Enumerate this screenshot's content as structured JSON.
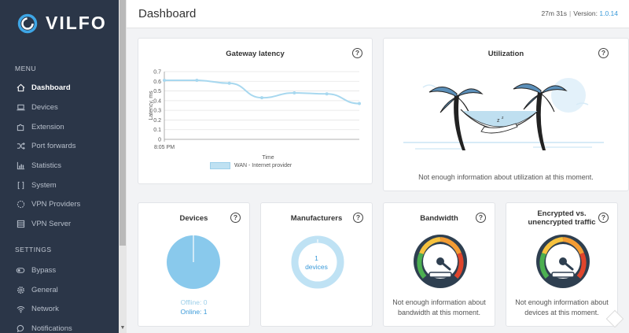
{
  "app": {
    "name": "VILFO"
  },
  "sidebar": {
    "menu_heading": "MENU",
    "settings_heading": "SETTINGS",
    "menu_items": [
      {
        "label": "Dashboard",
        "icon": "home-icon",
        "active": true
      },
      {
        "label": "Devices",
        "icon": "laptop-icon"
      },
      {
        "label": "Extension",
        "icon": "puzzle-icon"
      },
      {
        "label": "Port forwards",
        "icon": "shuffle-icon"
      },
      {
        "label": "Statistics",
        "icon": "bar-chart-icon"
      },
      {
        "label": "System",
        "icon": "system-icon"
      },
      {
        "label": "VPN Providers",
        "icon": "vpn-providers-icon"
      },
      {
        "label": "VPN Server",
        "icon": "server-icon"
      }
    ],
    "settings_items": [
      {
        "label": "Bypass",
        "icon": "toggle-icon"
      },
      {
        "label": "General",
        "icon": "gear-icon"
      },
      {
        "label": "Network",
        "icon": "wifi-icon"
      },
      {
        "label": "Notifications",
        "icon": "chat-bubble-icon"
      }
    ]
  },
  "header": {
    "title": "Dashboard",
    "uptime": "27m 31s",
    "version_label": "Version:",
    "version": "1.0.14"
  },
  "cards": {
    "latency": {
      "title": "Gateway latency",
      "help": "?",
      "chart_data": {
        "type": "line",
        "xlabel": "Time",
        "ylabel": "Latency, ms",
        "ylim": [
          0,
          0.7
        ],
        "yticks": [
          "0",
          "0.1",
          "0.2",
          "0.3",
          "0.4",
          "0.5",
          "0.6",
          "0.7"
        ],
        "x_tick": "8:05 PM",
        "series": [
          {
            "name": "WAN - Internet provider",
            "values": [
              0.61,
              0.61,
              0.58,
              0.43,
              0.48,
              0.47,
              0.37
            ]
          }
        ],
        "line_color": "#a8d8ef"
      }
    },
    "utilization": {
      "title": "Utilization",
      "help": "?",
      "message": "Not enough information about utilization at this moment."
    },
    "devices": {
      "title": "Devices",
      "help": "?",
      "chart_data": {
        "type": "pie",
        "labels": [
          "Offline",
          "Online"
        ],
        "values": [
          0,
          1
        ],
        "colors": [
          "#cfe9f6",
          "#89c9ec"
        ]
      },
      "offline_label": "Offline: 0",
      "online_label": "Online: 1"
    },
    "manufacturers": {
      "title": "Manufacturers",
      "help": "?",
      "count": "1",
      "unit": "devices"
    },
    "bandwidth": {
      "title": "Bandwidth",
      "help": "?",
      "message": "Not enough information about bandwidth at this moment."
    },
    "encrypted": {
      "title_line1": "Encrypted vs.",
      "title_line2": "unencrypted traffic",
      "help": "?",
      "message": "Not enough information about devices at this moment."
    }
  },
  "colors": {
    "sidebar_bg": "#2b3648",
    "accent": "#3a9ad9",
    "chart_blue": "#89c9ec"
  }
}
